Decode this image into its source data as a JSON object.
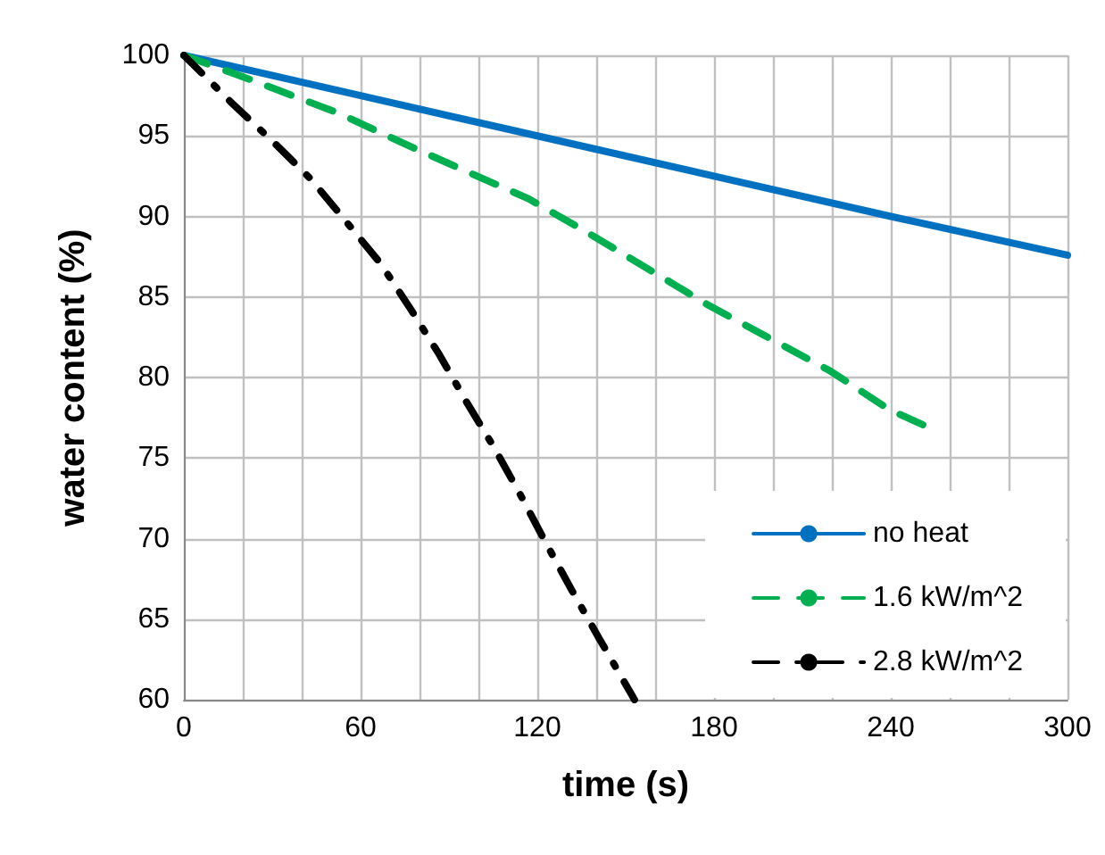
{
  "chart_data": {
    "type": "line",
    "xlabel": "time (s)",
    "ylabel": "water content (%)",
    "xlim": [
      0,
      300
    ],
    "ylim": [
      60,
      100
    ],
    "xticks": [
      0,
      {
        "value": 20,
        "label": null
      },
      {
        "value": 40,
        "label": null
      },
      60,
      {
        "value": 80,
        "label": null
      },
      {
        "value": 100,
        "label": null
      },
      120,
      {
        "value": 140,
        "label": null
      },
      {
        "value": 160,
        "label": null
      },
      180,
      {
        "value": 200,
        "label": null
      },
      {
        "value": 220,
        "label": null
      },
      240,
      {
        "value": 260,
        "label": null
      },
      {
        "value": 280,
        "label": null
      },
      300
    ],
    "yticks": [
      60,
      65,
      70,
      75,
      80,
      85,
      90,
      95,
      100
    ],
    "grid": true,
    "legend": "bottom right",
    "marker": "none",
    "series": [
      {
        "name": "no heat",
        "color": "#0070c0",
        "line_style": "solid",
        "x": [
          0,
          60,
          120,
          180,
          240,
          300
        ],
        "values": [
          100,
          97.5,
          95,
          92.5,
          90,
          87.6
        ]
      },
      {
        "name": "1.6 kW/m^2",
        "color": "#00b050",
        "line_style": "dashed",
        "x": [
          0,
          22.5,
          52.6,
          73.8,
          95.9,
          117,
          137,
          158,
          178,
          219.5,
          239.6,
          253
        ],
        "values": [
          100,
          98.5,
          96.4,
          94.6,
          92.8,
          91.1,
          89,
          86.7,
          84.5,
          80.4,
          78,
          76.9
        ]
      },
      {
        "name": "2.8 kW/m^2",
        "color": "#000000",
        "line_style": "dashdot",
        "x": [
          0,
          16.5,
          30.5,
          43.2,
          55,
          66.7,
          76.8,
          86.8,
          95.9,
          105.5,
          114.6,
          123,
          132,
          141,
          153
        ],
        "values": [
          100,
          97,
          94.6,
          92.3,
          89.7,
          87.1,
          84.3,
          81.4,
          78.5,
          75.6,
          72.6,
          69.7,
          66.7,
          63.8,
          60
        ]
      }
    ]
  }
}
